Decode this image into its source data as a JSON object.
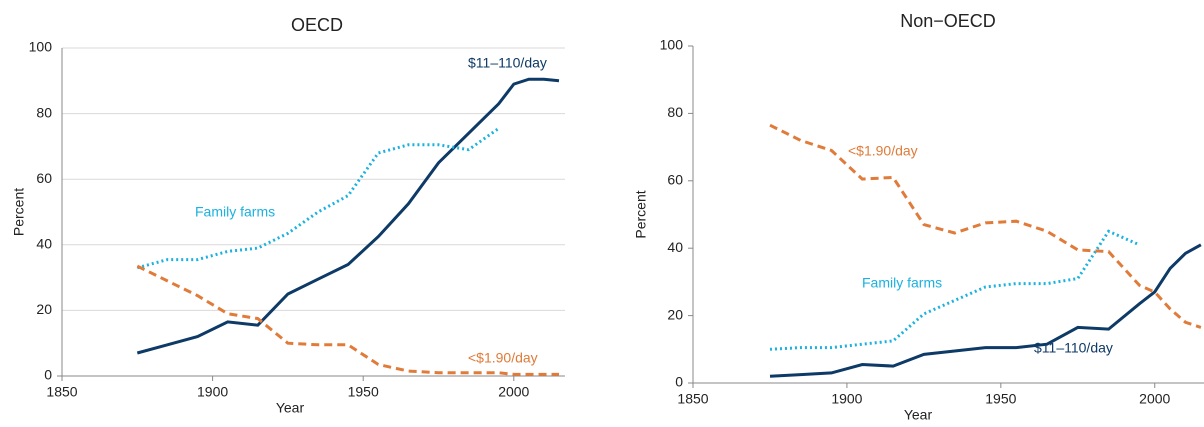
{
  "chart_data": [
    {
      "type": "line",
      "title": "OECD",
      "x_label": "Year",
      "y_label": "Percent",
      "x": [
        1875,
        1885,
        1895,
        1905,
        1915,
        1925,
        1935,
        1945,
        1955,
        1965,
        1975,
        1985,
        1995,
        2000,
        2005,
        2010,
        2015
      ],
      "xlim": [
        1850,
        2017
      ],
      "xticks": [
        1850,
        1900,
        1950,
        2000
      ],
      "ylim": [
        0,
        100
      ],
      "yticks": [
        0,
        20,
        40,
        60,
        80,
        100
      ],
      "grid": true,
      "series": [
        {
          "name": "$11–110/day",
          "color": "#0d3a66",
          "dash": "solid",
          "values": [
            7,
            9.5,
            12,
            16.5,
            15.5,
            25,
            29.5,
            34,
            42.5,
            52.5,
            65,
            74,
            83,
            89,
            90.5,
            90.5,
            90
          ]
        },
        {
          "name": "Family farms",
          "color": "#1bb1e0",
          "dash": "dotted",
          "values": [
            33,
            35.5,
            35.5,
            38,
            39,
            43.5,
            50,
            55,
            68,
            70.5,
            70.5,
            69,
            75.5,
            null,
            null,
            null,
            null
          ]
        },
        {
          "name": "<$1.90/day",
          "color": "#e07b39",
          "dash": "dashed",
          "values": [
            33.5,
            29,
            24.5,
            19,
            17.5,
            10,
            9.5,
            9.5,
            3.5,
            1.5,
            1,
            1,
            1,
            0.5,
            0.5,
            0.5,
            0.5
          ]
        }
      ]
    },
    {
      "type": "line",
      "title": "Non−OECD",
      "x_label": "Year",
      "y_label": "Percent",
      "x": [
        1875,
        1885,
        1895,
        1905,
        1915,
        1925,
        1935,
        1945,
        1955,
        1965,
        1975,
        1985,
        1995,
        2000,
        2005,
        2010,
        2015
      ],
      "xlim": [
        1850,
        2016
      ],
      "xticks": [
        1850,
        1900,
        1950,
        2000
      ],
      "ylim": [
        0,
        100
      ],
      "yticks": [
        0,
        20,
        40,
        60,
        80,
        100
      ],
      "grid": false,
      "series": [
        {
          "name": "$11–110/day",
          "color": "#0d3a66",
          "dash": "solid",
          "values": [
            2,
            2.5,
            3,
            5.5,
            5,
            8.5,
            9.5,
            10.5,
            10.5,
            11.5,
            16.5,
            16,
            23.5,
            27,
            34,
            38.5,
            41
          ]
        },
        {
          "name": "Family farms",
          "color": "#1bb1e0",
          "dash": "dotted",
          "values": [
            10,
            10.5,
            10.5,
            11.5,
            12.5,
            20.5,
            24.5,
            28.5,
            29.5,
            29.5,
            31,
            45,
            41,
            null,
            null,
            null,
            null
          ]
        },
        {
          "name": "<$1.90/day",
          "color": "#e07b39",
          "dash": "dashed",
          "values": [
            76.5,
            72,
            69,
            60.5,
            61,
            47,
            44.5,
            47.5,
            48,
            45,
            39.5,
            39,
            29,
            27,
            22,
            18,
            16.5
          ]
        }
      ]
    }
  ]
}
